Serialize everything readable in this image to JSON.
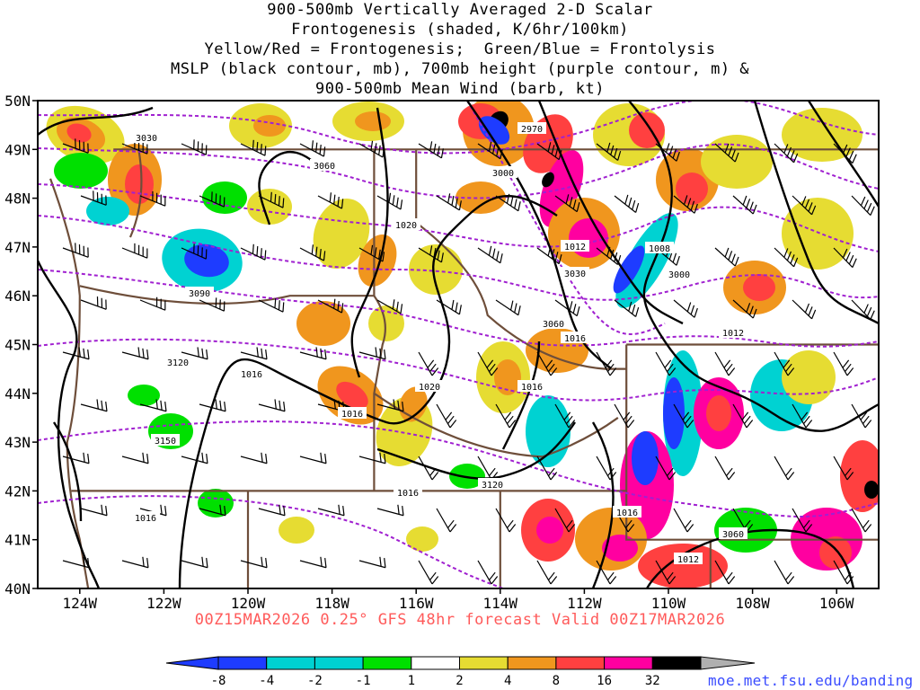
{
  "title_lines": [
    "900-500mb Vertically Averaged 2-D Scalar",
    "Frontogenesis (shaded, K/6hr/100km)",
    "Yellow/Red = Frontogenesis;  Green/Blue = Frontolysis",
    "MSLP (black contour, mb), 700mb height (purple contour, m) &",
    "900-500mb Mean Wind (barb, kt)"
  ],
  "valid_line": "00Z15MAR2026 0.25° GFS 48hr forecast Valid 00Z17MAR2026",
  "credit": "moe.met.fsu.edu/banding",
  "axes": {
    "lat_labels": [
      "50N",
      "49N",
      "48N",
      "47N",
      "46N",
      "45N",
      "44N",
      "43N",
      "42N",
      "41N",
      "40N"
    ],
    "lon_labels": [
      "124W",
      "122W",
      "120W",
      "118W",
      "116W",
      "114W",
      "112W",
      "110W",
      "108W",
      "106W"
    ]
  },
  "colors": {
    "frontolysis_strong": "#1e3cff",
    "frontolysis": "#00d2d2",
    "weak_neg": "#00e000",
    "neutral": "#ffffff",
    "weak_pos": "#e6dc32",
    "moderate": "#f0961e",
    "strong": "#ff4040",
    "very_strong": "#ff00a0",
    "extreme": "#000000",
    "mslp_contour": "#000000",
    "height_contour": "#a020d0",
    "borders": "#6e4e3a"
  },
  "colorbar_labels": [
    "-8",
    "-4",
    "-2",
    "-1",
    "1",
    "2",
    "4",
    "8",
    "16",
    "32"
  ],
  "mslp_labels": [
    "1016",
    "1016",
    "1020",
    "1016",
    "1020",
    "1012",
    "1008",
    "1016",
    "1016",
    "1016",
    "1012",
    "1016",
    "1012"
  ],
  "height_labels": [
    "3030",
    "3060",
    "3090",
    "3120",
    "3150",
    "2970",
    "3000",
    "3030",
    "3000",
    "3060",
    "3120",
    "3060"
  ]
}
